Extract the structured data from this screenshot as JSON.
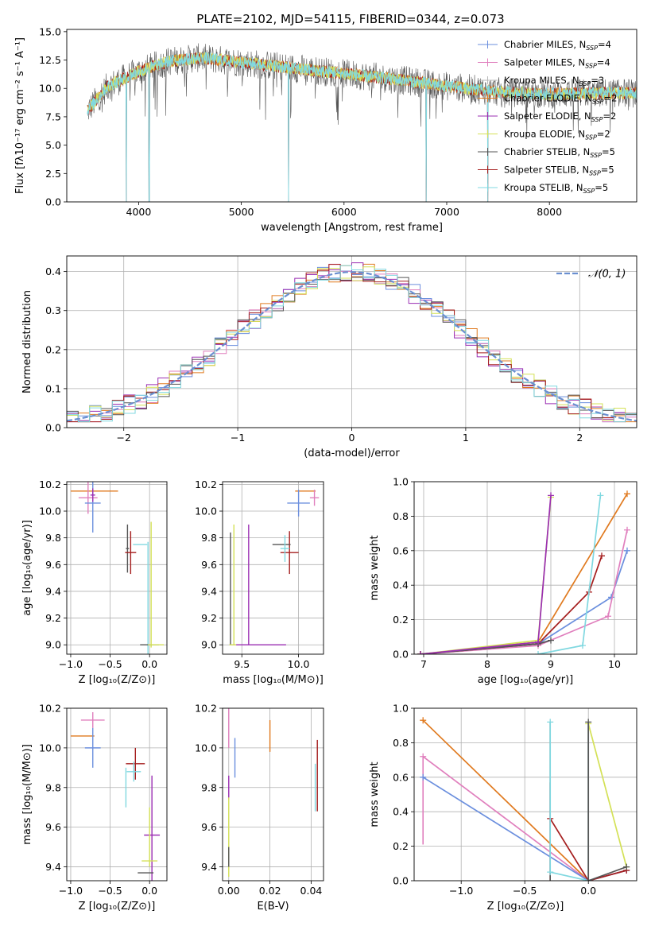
{
  "title": "PLATE=2102, MJD=54115, FIBERID=0344, z=0.073",
  "models": [
    {
      "key": "cm",
      "label_main": "Chabrier MILES, N",
      "label_sub": "SSP",
      "label_tail": "=4",
      "color": "#6b8fde"
    },
    {
      "key": "sm",
      "label_main": "Salpeter MILES, N",
      "label_sub": "SSP",
      "label_tail": "=4",
      "color": "#e07fbd"
    },
    {
      "key": "km",
      "label_main": "Kroupa MILES, N",
      "label_sub": "SSP",
      "label_tail": "=3",
      "color": "#b7b7b7"
    },
    {
      "key": "ce",
      "label_main": "Chabrier ELODIE, N",
      "label_sub": "SSP",
      "label_tail": "=2",
      "color": "#e07a1f"
    },
    {
      "key": "se",
      "label_main": "Salpeter ELODIE, N",
      "label_sub": "SSP",
      "label_tail": "=2",
      "color": "#9b2fb3"
    },
    {
      "key": "ke",
      "label_main": "Kroupa ELODIE, N",
      "label_sub": "SSP",
      "label_tail": "=2",
      "color": "#d4e157"
    },
    {
      "key": "cs",
      "label_main": "Chabrier STELIB, N",
      "label_sub": "SSP",
      "label_tail": "=5",
      "color": "#555555"
    },
    {
      "key": "ss",
      "label_main": "Salpeter STELIB, N",
      "label_sub": "SSP",
      "label_tail": "=5",
      "color": "#a51e1e"
    },
    {
      "key": "ks",
      "label_main": "Kroupa STELIB, N",
      "label_sub": "SSP",
      "label_tail": "=5",
      "color": "#80d8e0"
    }
  ],
  "chart_data": [
    {
      "id": "spectrum",
      "type": "line",
      "xlabel": "wavelength [Angstrom, rest frame]",
      "ylabel": "Flux [fλ10⁻¹⁷ erg cm⁻² s⁻¹ A⁻¹]",
      "xlim": [
        3300,
        8850
      ],
      "ylim": [
        0,
        15.2
      ],
      "xticks": [
        "4000",
        "5000",
        "6000",
        "7000",
        "8000"
      ],
      "yticks": [
        "0.0",
        "2.5",
        "5.0",
        "7.5",
        "10.0",
        "12.5",
        "15.0"
      ],
      "continuum": [
        [
          3500,
          8.0
        ],
        [
          3700,
          10.2
        ],
        [
          4000,
          11.5
        ],
        [
          4300,
          12.4
        ],
        [
          4600,
          12.7
        ],
        [
          5000,
          12.3
        ],
        [
          5500,
          11.8
        ],
        [
          6000,
          11.3
        ],
        [
          6500,
          10.8
        ],
        [
          7000,
          10.2
        ],
        [
          7500,
          9.7
        ],
        [
          8000,
          9.5
        ],
        [
          8500,
          9.6
        ],
        [
          8850,
          9.6
        ]
      ],
      "drops": [
        [
          3880,
          0.0
        ],
        [
          4101,
          0.0
        ],
        [
          5460,
          0.0
        ],
        [
          6800,
          0.0
        ],
        [
          7400,
          0.0
        ]
      ]
    },
    {
      "id": "residuals",
      "type": "histogram",
      "xlabel": "(data-model)/error",
      "ylabel": "Normed distribution",
      "xlim": [
        -2.5,
        2.5
      ],
      "ylim": [
        0,
        0.44
      ],
      "xticks": [
        "−2",
        "−1",
        "0",
        "1",
        "2"
      ],
      "yticks": [
        "0.0",
        "0.1",
        "0.2",
        "0.3",
        "0.4"
      ],
      "bins": 50,
      "gaussian_label": "𝒩(0, 1)",
      "gaussian_color": "#6a8fd0"
    },
    {
      "id": "age_vs_Z",
      "type": "errorbar",
      "xlabel": "Z [log₁₀(Z/Z⊙)]",
      "ylabel": "age  [log₁₀(age/yr)]",
      "xlim": [
        -1.05,
        0.22
      ],
      "ylim": [
        8.93,
        10.22
      ],
      "xticks": [
        "−1.0",
        "−0.5",
        "0.0"
      ],
      "yticks": [
        "9.0",
        "9.2",
        "9.4",
        "9.6",
        "9.8",
        "10.0",
        "10.2"
      ],
      "points": [
        {
          "m": "ce",
          "x": -0.7,
          "y": 10.15,
          "xe": 0.3,
          "ye": 0.0
        },
        {
          "m": "sm",
          "x": -0.78,
          "y": 10.1,
          "xe": 0.12,
          "ye": 0.12
        },
        {
          "m": "cm",
          "x": -0.72,
          "y": 10.06,
          "xe": 0.1,
          "ye": 0.22
        },
        {
          "m": "se",
          "x": -0.72,
          "y": 10.12,
          "xe": 0.03,
          "ye": 0.05
        },
        {
          "m": "cs",
          "x": -0.28,
          "y": 9.72,
          "xe": 0.02,
          "ye": 0.18
        },
        {
          "m": "ss",
          "x": -0.24,
          "y": 9.69,
          "xe": 0.07,
          "ye": 0.16
        },
        {
          "m": "ks",
          "x": -0.12,
          "y": 9.75,
          "xe": 0.09,
          "ye": 0.0
        },
        {
          "m": "ks",
          "x": -0.02,
          "y": 9.35,
          "xe": 0.0,
          "ye": 0.42
        },
        {
          "m": "ke",
          "x": 0.02,
          "y": 9.45,
          "xe": 0.0,
          "ye": 0.47
        },
        {
          "m": "cs",
          "x": 0.0,
          "y": 9.0,
          "xe": 0.12,
          "ye": 0.0
        },
        {
          "m": "ke",
          "x": 0.08,
          "y": 9.0,
          "xe": 0.1,
          "ye": 0.0
        }
      ]
    },
    {
      "id": "age_vs_mass",
      "type": "errorbar",
      "xlabel": "mass [log₁₀(M/M⊙)]",
      "ylabel": "",
      "xlim": [
        9.33,
        10.22
      ],
      "ylim": [
        8.93,
        10.22
      ],
      "xticks": [
        "9.5",
        "10.0"
      ],
      "yticks": [
        "9.0",
        "9.2",
        "9.4",
        "9.6",
        "9.8",
        "10.0",
        "10.2"
      ],
      "points": [
        {
          "m": "ce",
          "x": 10.06,
          "y": 10.15,
          "xe": 0.09,
          "ye": 0.0
        },
        {
          "m": "sm",
          "x": 10.14,
          "y": 10.1,
          "xe": 0.04,
          "ye": 0.06
        },
        {
          "m": "cm",
          "x": 10.0,
          "y": 10.06,
          "xe": 0.1,
          "ye": 0.1
        },
        {
          "m": "ss",
          "x": 9.92,
          "y": 9.69,
          "xe": 0.08,
          "ye": 0.16
        },
        {
          "m": "cs",
          "x": 9.85,
          "y": 9.75,
          "xe": 0.08,
          "ye": 0.0
        },
        {
          "m": "ks",
          "x": 9.88,
          "y": 9.72,
          "xe": 0.04,
          "ye": 0.1
        },
        {
          "m": "se",
          "x": 9.56,
          "y": 9.45,
          "xe": 0.0,
          "ye": 0.45
        },
        {
          "m": "ke",
          "x": 9.43,
          "y": 9.45,
          "xe": 0.0,
          "ye": 0.45
        },
        {
          "m": "cs",
          "x": 9.4,
          "y": 9.42,
          "xe": 0.0,
          "ye": 0.42
        },
        {
          "m": "se",
          "x": 9.65,
          "y": 9.0,
          "xe": 0.24,
          "ye": 0.0
        },
        {
          "m": "ke",
          "x": 9.42,
          "y": 9.0,
          "xe": 0.03,
          "ye": 0.0
        }
      ]
    },
    {
      "id": "weight_vs_age",
      "type": "line",
      "xlabel": "age  [log₁₀(age/yr)]",
      "ylabel": "mass weight",
      "xlim": [
        6.85,
        10.35
      ],
      "ylim": [
        0,
        1.0
      ],
      "xticks": [
        "7",
        "8",
        "9",
        "10"
      ],
      "yticks": [
        "0.0",
        "0.2",
        "0.4",
        "0.6",
        "0.8",
        "1.0"
      ],
      "series": [
        {
          "m": "cm",
          "points": [
            [
              6.95,
              0.0
            ],
            [
              8.8,
              0.06
            ],
            [
              9.95,
              0.33
            ],
            [
              10.2,
              0.6
            ]
          ]
        },
        {
          "m": "sm",
          "points": [
            [
              6.95,
              0.0
            ],
            [
              8.8,
              0.05
            ],
            [
              9.9,
              0.22
            ],
            [
              10.2,
              0.72
            ]
          ]
        },
        {
          "m": "ce",
          "points": [
            [
              6.95,
              0.0
            ],
            [
              8.8,
              0.07
            ],
            [
              10.2,
              0.93
            ]
          ]
        },
        {
          "m": "ss",
          "points": [
            [
              6.95,
              0.0
            ],
            [
              8.8,
              0.06
            ],
            [
              9.6,
              0.36
            ],
            [
              9.8,
              0.57
            ]
          ]
        },
        {
          "m": "cs",
          "points": [
            [
              6.95,
              0.0
            ],
            [
              8.8,
              0.06
            ],
            [
              9.0,
              0.08
            ]
          ]
        },
        {
          "m": "ke",
          "points": [
            [
              6.95,
              0.0
            ],
            [
              8.8,
              0.08
            ],
            [
              9.0,
              0.91
            ]
          ]
        },
        {
          "m": "se",
          "points": [
            [
              6.95,
              0.0
            ],
            [
              8.8,
              0.07
            ],
            [
              9.0,
              0.92
            ]
          ]
        },
        {
          "m": "ks",
          "points": [
            [
              8.8,
              0.0
            ],
            [
              9.5,
              0.05
            ],
            [
              9.78,
              0.92
            ]
          ]
        }
      ]
    },
    {
      "id": "mass_vs_Z",
      "type": "errorbar",
      "xlabel": "Z [log₁₀(Z/Z⊙)]",
      "ylabel": "mass [log₁₀(M/M⊙)]",
      "xlim": [
        -1.05,
        0.22
      ],
      "ylim": [
        9.33,
        10.2
      ],
      "xticks": [
        "−1.0",
        "−0.5",
        "0.0"
      ],
      "yticks": [
        "9.4",
        "9.6",
        "9.8",
        "10.0",
        "10.2"
      ],
      "points": [
        {
          "m": "sm",
          "x": -0.72,
          "y": 10.14,
          "xe": 0.15,
          "ye": 0.04
        },
        {
          "m": "ce",
          "x": -0.85,
          "y": 10.06,
          "xe": 0.15,
          "ye": 0.0
        },
        {
          "m": "cm",
          "x": -0.72,
          "y": 10.0,
          "xe": 0.1,
          "ye": 0.1
        },
        {
          "m": "ss",
          "x": -0.18,
          "y": 9.92,
          "xe": 0.12,
          "ye": 0.08
        },
        {
          "m": "ks",
          "x": -0.2,
          "y": 9.88,
          "xe": 0.09,
          "ye": 0.05
        },
        {
          "m": "ks",
          "x": -0.3,
          "y": 9.8,
          "xe": 0.0,
          "ye": 0.1
        },
        {
          "m": "se",
          "x": 0.03,
          "y": 9.56,
          "xe": 0.1,
          "ye": 0.3
        },
        {
          "m": "ke",
          "x": 0.0,
          "y": 9.55,
          "xe": 0.0,
          "ye": 0.15
        },
        {
          "m": "ke",
          "x": 0.0,
          "y": 9.43,
          "xe": 0.1,
          "ye": 0.0
        },
        {
          "m": "cs",
          "x": -0.05,
          "y": 9.37,
          "xe": 0.1,
          "ye": 0.0
        }
      ]
    },
    {
      "id": "mass_vs_ebv",
      "type": "errorbar",
      "xlabel": "E(B-V)",
      "ylabel": "",
      "xlim": [
        -0.003,
        0.046
      ],
      "ylim": [
        9.33,
        10.2
      ],
      "xticks": [
        "0.00",
        "0.02",
        "0.04"
      ],
      "yticks": [
        "9.4",
        "9.6",
        "9.8",
        "10.0",
        "10.2"
      ],
      "points": [
        {
          "m": "sm",
          "x": 0.0,
          "y": 10.1,
          "xe": 0.0,
          "ye": 0.1
        },
        {
          "m": "cm",
          "x": 0.003,
          "y": 9.95,
          "xe": 0.0,
          "ye": 0.1
        },
        {
          "m": "ce",
          "x": 0.02,
          "y": 10.06,
          "xe": 0.0,
          "ye": 0.08
        },
        {
          "m": "se",
          "x": 0.0,
          "y": 9.8,
          "xe": 0.0,
          "ye": 0.06
        },
        {
          "m": "ss",
          "x": 0.043,
          "y": 9.86,
          "xe": 0.0,
          "ye": 0.18
        },
        {
          "m": "ks",
          "x": 0.042,
          "y": 9.8,
          "xe": 0.0,
          "ye": 0.12
        },
        {
          "m": "ke",
          "x": 0.0,
          "y": 9.55,
          "xe": 0.0,
          "ye": 0.2
        },
        {
          "m": "cs",
          "x": 0.0,
          "y": 9.45,
          "xe": 0.0,
          "ye": 0.05
        }
      ]
    },
    {
      "id": "weight_vs_Z",
      "type": "line",
      "xlabel": "Z [log₁₀(Z/Z⊙)]",
      "ylabel": "mass weight",
      "xlim": [
        -1.37,
        0.38
      ],
      "ylim": [
        0,
        1.0
      ],
      "xticks": [
        "−1.0",
        "−0.5",
        "0.0"
      ],
      "yticks": [
        "0.0",
        "0.2",
        "0.4",
        "0.6",
        "0.8",
        "1.0"
      ],
      "series": [
        {
          "m": "ce",
          "points": [
            [
              -1.3,
              0.93
            ],
            [
              0.0,
              0.0
            ],
            [
              0.3,
              0.06
            ]
          ]
        },
        {
          "m": "sm",
          "points": [
            [
              -1.3,
              0.72
            ],
            [
              0.0,
              0.0
            ],
            [
              0.3,
              0.06
            ]
          ]
        },
        {
          "m": "cm",
          "points": [
            [
              -1.3,
              0.6
            ],
            [
              0.0,
              0.0
            ],
            [
              0.3,
              0.06
            ]
          ]
        },
        {
          "m": "ss",
          "points": [
            [
              -0.3,
              0.36
            ],
            [
              0.0,
              0.0
            ],
            [
              0.3,
              0.06
            ]
          ]
        },
        {
          "m": "ks",
          "points": [
            [
              -0.3,
              0.92
            ],
            [
              -0.3,
              0.05
            ],
            [
              0.0,
              0.0
            ]
          ]
        },
        {
          "m": "ke",
          "points": [
            [
              0.0,
              0.91
            ],
            [
              0.3,
              0.08
            ]
          ]
        },
        {
          "m": "cs",
          "points": [
            [
              0.0,
              0.92
            ],
            [
              0.0,
              0.0
            ],
            [
              0.3,
              0.08
            ]
          ]
        }
      ],
      "vlines": [
        {
          "m": "sm",
          "x": -1.3,
          "y0": 0.21,
          "y1": 0.72
        },
        {
          "m": "ss",
          "x": -0.3,
          "y0": 0.0,
          "y1": 0.57
        },
        {
          "m": "cs",
          "x": -0.3,
          "y0": 0.0,
          "y1": 0.92
        },
        {
          "m": "cs",
          "x": 0.0,
          "y0": 0.0,
          "y1": 0.92
        },
        {
          "m": "ks",
          "x": 0.0,
          "y0": 0.0,
          "y1": 0.92
        }
      ]
    }
  ]
}
